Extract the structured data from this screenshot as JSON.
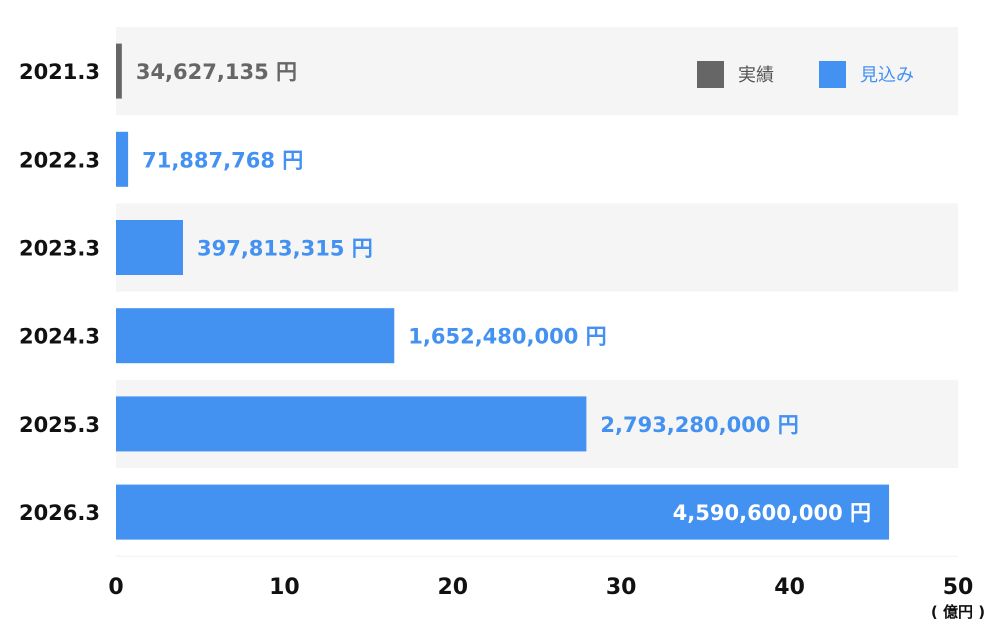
{
  "chart_data": {
    "type": "bar",
    "orientation": "horizontal",
    "categories": [
      "2021.3",
      "2022.3",
      "2023.3",
      "2024.3",
      "2025.3",
      "2026.3"
    ],
    "values": [
      34627135,
      71887768,
      397813315,
      1652480000,
      2793280000,
      4590600000
    ],
    "value_labels": [
      "34,627,135 円",
      "71,887,768 円",
      "397,813,315 円",
      "1,652,480,000 円",
      "2,793,280,000 円",
      "4,590,600,000 円"
    ],
    "series_kind": [
      "actual",
      "forecast",
      "forecast",
      "forecast",
      "forecast",
      "forecast"
    ],
    "axis_scale": 100000000,
    "xlim": [
      0,
      50
    ],
    "xticks": [
      "0",
      "10",
      "20",
      "30",
      "40",
      "50"
    ],
    "unit_label": "( 億円 )",
    "legend": {
      "placement": "top-right",
      "items": [
        {
          "key": "actual",
          "label": "実績"
        },
        {
          "key": "forecast",
          "label": "見込み"
        }
      ]
    },
    "colors": {
      "actual": "#666666",
      "forecast": "#4391f1",
      "label_inside": "#ffffff",
      "row_shade": "#f5f5f5"
    }
  }
}
